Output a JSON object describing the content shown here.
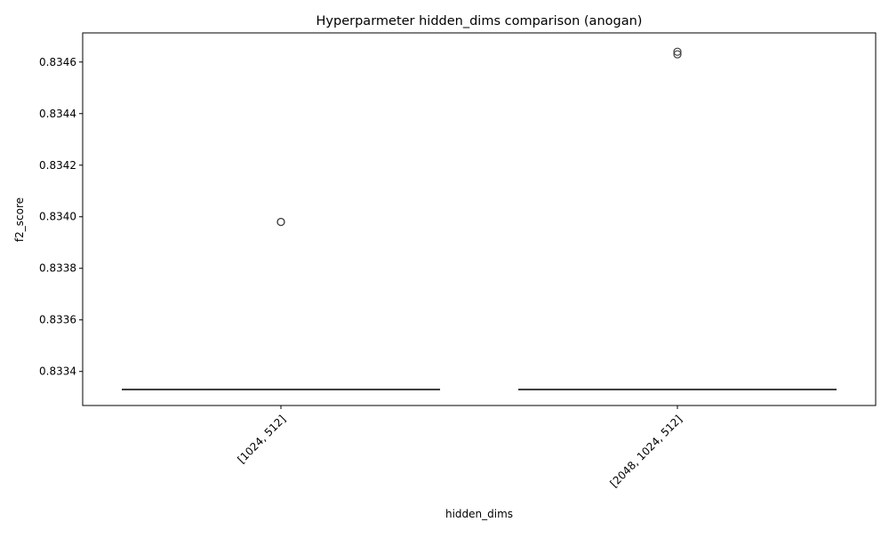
{
  "chart_data": {
    "type": "box",
    "title": "Hyperparmeter hidden_dims comparison (anogan)",
    "xlabel": "hidden_dims",
    "ylabel": "f2_score",
    "categories": [
      "[1024, 512]",
      "[2048, 1024, 512]"
    ],
    "boxes": [
      {
        "category": "[1024, 512]",
        "whisker_low": 0.83333,
        "q1": 0.83333,
        "median": 0.83333,
        "q3": 0.83333,
        "whisker_high": 0.83333,
        "outliers": [
          0.83398,
          0.83398
        ]
      },
      {
        "category": "[2048, 1024, 512]",
        "whisker_low": 0.83333,
        "q1": 0.83333,
        "median": 0.83333,
        "q3": 0.83333,
        "whisker_high": 0.83333,
        "outliers": [
          0.83463,
          0.83464
        ]
      }
    ],
    "yticks": [
      0.8334,
      0.8336,
      0.8338,
      0.834,
      0.8342,
      0.8344,
      0.8346
    ],
    "ytick_labels": [
      "0.8334",
      "0.8336",
      "0.8338",
      "0.8340",
      "0.8342",
      "0.8344",
      "0.8346"
    ],
    "ylim": [
      0.833268,
      0.834713
    ],
    "xtick_rotation_deg": 45,
    "grid": false,
    "colors": {
      "box_line": "#3f3f3f",
      "axis": "#000000",
      "background": "#ffffff"
    }
  }
}
